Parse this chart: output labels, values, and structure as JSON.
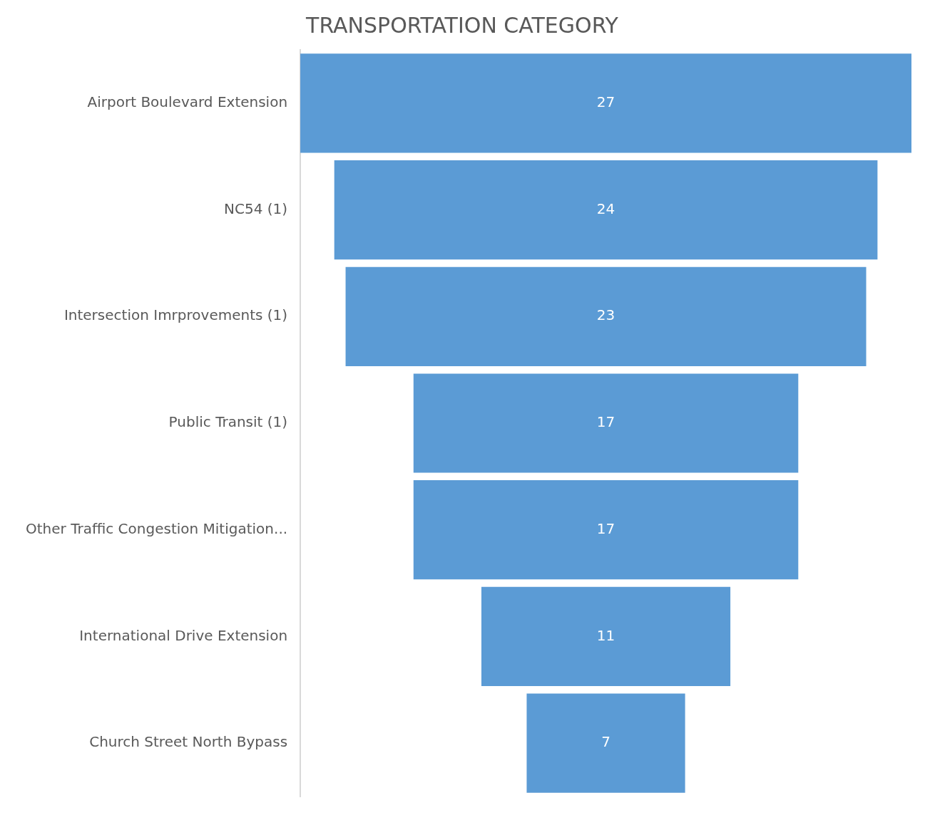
{
  "chart_data": {
    "type": "other",
    "title": "TRANSPORTATION CATEGORY",
    "categories": [
      "Airport Boulevard Extension",
      "NC54 (1)",
      "Intersection Imrprovements (1)",
      "Public Transit (1)",
      "Other Traffic Congestion Mitigation...",
      "International Drive Extension",
      "Church Street North Bypass"
    ],
    "values": [
      27,
      24,
      23,
      17,
      17,
      11,
      7
    ],
    "color": "#5b9bd5",
    "data_labels": true
  }
}
